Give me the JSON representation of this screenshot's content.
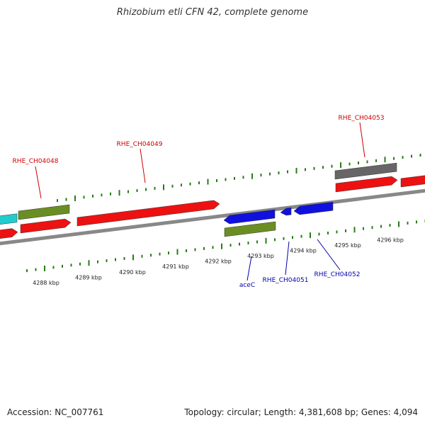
{
  "title": "Rhizobium etli CFN 42, complete genome",
  "footer": {
    "accession": "Accession: NC_007761",
    "stats": "Topology: circular; Length: 4,381,608 bp; Genes: 4,094"
  },
  "colors": {
    "red": "#ee1111",
    "green": "#6b8e23",
    "blue": "#1111dd",
    "gray": "#666666",
    "cyan": "#22cccc",
    "tick": "#2a7a1a",
    "label_red": "#cc0000",
    "label_blue": "#0000aa"
  },
  "scale_labels": [
    "4288 kbp",
    "4289 kbp",
    "4290 kbp",
    "4291 kbp",
    "4292 kbp",
    "4293 kbp",
    "4294 kbp",
    "4295 kbp",
    "4296 kbp"
  ],
  "gene_labels": {
    "top": [
      "RHE_CH04048",
      "RHE_CH04049",
      "RHE_CH04053"
    ],
    "bottom": [
      "aceC",
      "RHE_CH04051",
      "RHE_CH04052"
    ]
  }
}
